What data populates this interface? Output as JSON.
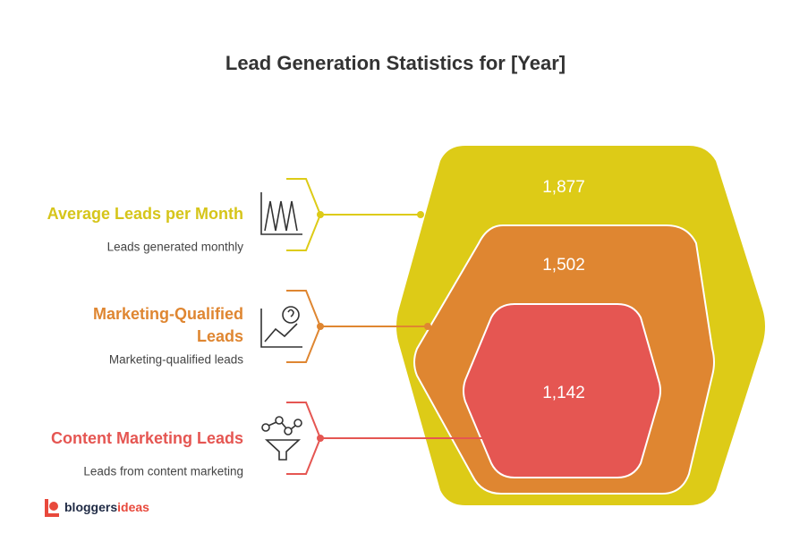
{
  "header": {
    "title": "Lead Generation Statistics for [Year]"
  },
  "items": [
    {
      "label": [
        "Average Leads per Month"
      ],
      "description": "Leads generated monthly",
      "value": "1,877"
    },
    {
      "label": [
        "Marketing-Qualified",
        "Leads"
      ],
      "description": "Marketing-qualified leads",
      "value": "1,502"
    },
    {
      "label": [
        "Content Marketing Leads"
      ],
      "description": "Leads from content marketing",
      "value": "1,142"
    }
  ],
  "logo": {
    "part1": "bloggers",
    "part2": "ideas"
  }
}
